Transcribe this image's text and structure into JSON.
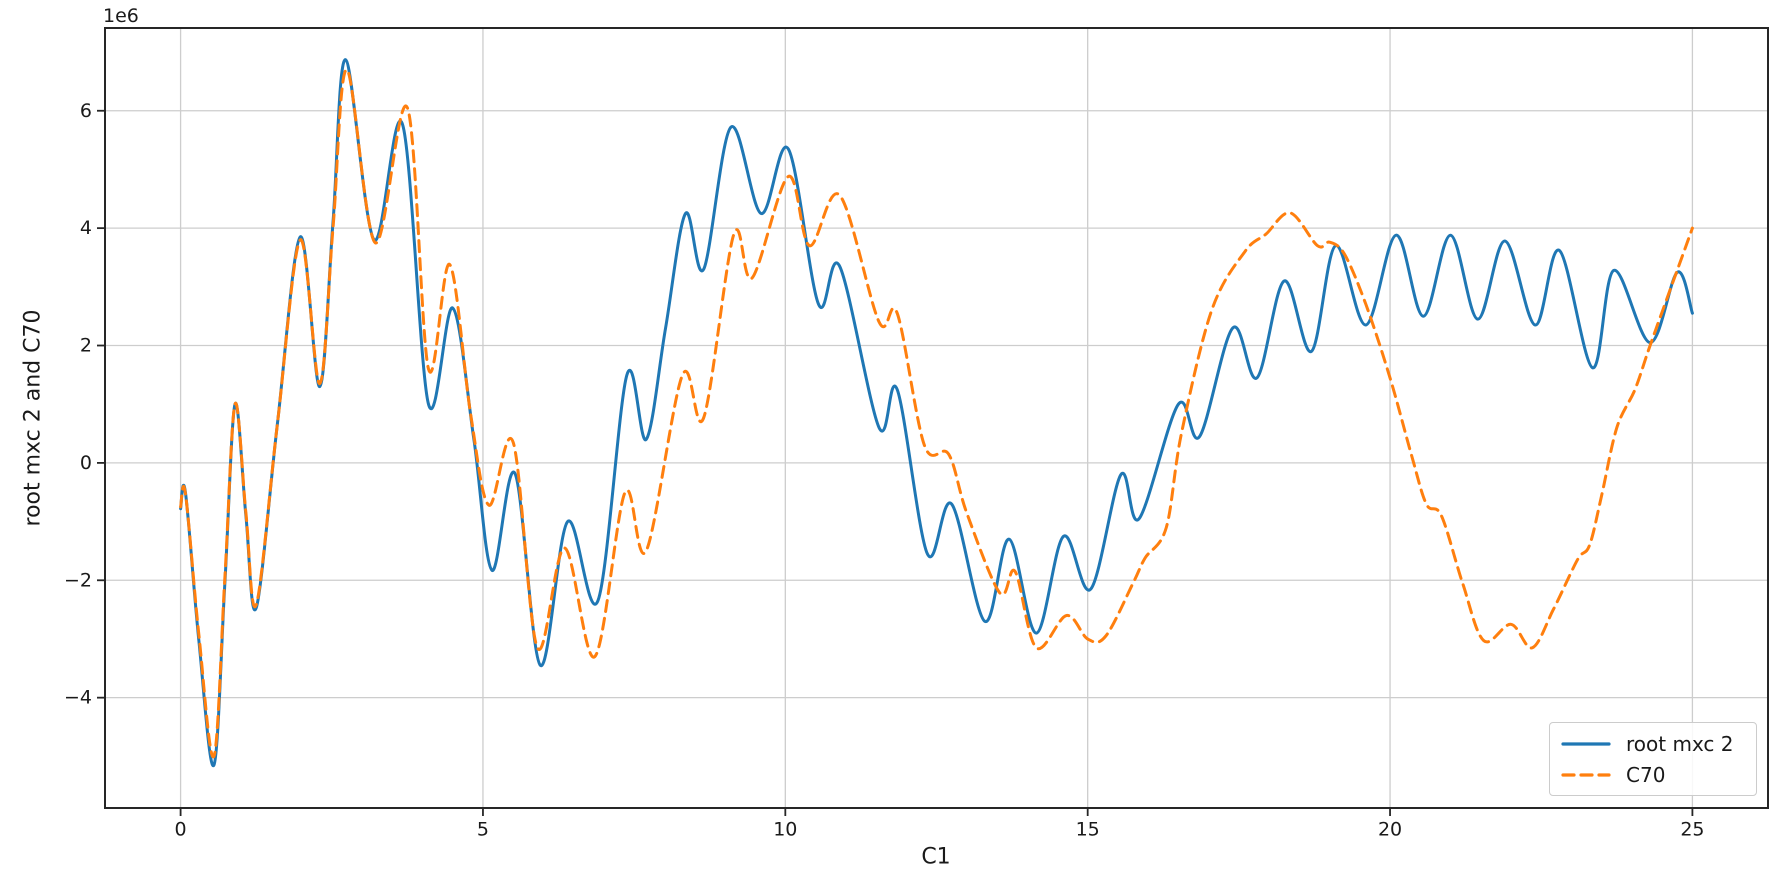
{
  "figure": {
    "xlabel": "C1",
    "ylabel": "root mxc 2 and C70",
    "offset_text": "1e6",
    "background": "#ffffff"
  },
  "legend": {
    "position": "lower right",
    "items": [
      {
        "label": "root mxc 2",
        "color": "#1f77b4",
        "dash": "solid"
      },
      {
        "label": "C70",
        "color": "#ff7f0e",
        "dash": "dashed"
      }
    ]
  },
  "colors": {
    "grid": "#cdcdcd",
    "spine": "#262626",
    "tick": "#262626",
    "text": "#1a1a1a",
    "series_blue": "#1f77b4",
    "series_orange": "#ff7f0e"
  },
  "chart_data": {
    "type": "line",
    "title": "",
    "xlabel": "C1",
    "ylabel": "root mxc 2 and C70",
    "y_unit": "1e6",
    "xlim": [
      -1.25,
      26.25
    ],
    "ylim": [
      -5.88,
      7.41
    ],
    "xticks": [
      0,
      5,
      10,
      15,
      20,
      25
    ],
    "yticks": [
      -4,
      -2,
      0,
      2,
      4,
      6
    ],
    "grid": true,
    "legend_position": "lower right",
    "series": [
      {
        "name": "root mxc 2",
        "color": "#1f77b4",
        "style": "solid",
        "points": [
          [
            0,
            -0.78
          ],
          [
            0.08,
            -0.5
          ],
          [
            0.3,
            -3.0
          ],
          [
            0.55,
            -5.15
          ],
          [
            0.73,
            -2.1
          ],
          [
            0.9,
            1.0
          ],
          [
            1.08,
            -0.9
          ],
          [
            1.25,
            -2.47
          ],
          [
            1.6,
            0.65
          ],
          [
            1.98,
            3.85
          ],
          [
            2.3,
            1.3
          ],
          [
            2.52,
            4.1
          ],
          [
            2.73,
            6.87
          ],
          [
            3.2,
            3.8
          ],
          [
            3.67,
            5.77
          ],
          [
            4.1,
            1.0
          ],
          [
            4.5,
            2.64
          ],
          [
            4.85,
            0.4
          ],
          [
            5.15,
            -1.83
          ],
          [
            5.53,
            -0.18
          ],
          [
            5.95,
            -3.45
          ],
          [
            6.4,
            -1.0
          ],
          [
            6.9,
            -2.35
          ],
          [
            7.38,
            1.5
          ],
          [
            7.7,
            0.4
          ],
          [
            8.02,
            2.3
          ],
          [
            8.35,
            4.25
          ],
          [
            8.65,
            3.3
          ],
          [
            9.1,
            5.72
          ],
          [
            9.6,
            4.25
          ],
          [
            10.05,
            5.35
          ],
          [
            10.55,
            2.7
          ],
          [
            10.9,
            3.35
          ],
          [
            11.55,
            0.6
          ],
          [
            11.85,
            1.25
          ],
          [
            12.35,
            -1.55
          ],
          [
            12.75,
            -0.7
          ],
          [
            13.3,
            -2.7
          ],
          [
            13.7,
            -1.3
          ],
          [
            14.15,
            -2.9
          ],
          [
            14.6,
            -1.25
          ],
          [
            15.05,
            -2.15
          ],
          [
            15.55,
            -0.2
          ],
          [
            15.85,
            -0.95
          ],
          [
            16.5,
            1.0
          ],
          [
            16.85,
            0.45
          ],
          [
            17.4,
            2.3
          ],
          [
            17.8,
            1.45
          ],
          [
            18.25,
            3.1
          ],
          [
            18.7,
            1.9
          ],
          [
            19.1,
            3.7
          ],
          [
            19.6,
            2.35
          ],
          [
            20.1,
            3.88
          ],
          [
            20.55,
            2.5
          ],
          [
            21.0,
            3.88
          ],
          [
            21.45,
            2.45
          ],
          [
            21.9,
            3.78
          ],
          [
            22.4,
            2.35
          ],
          [
            22.8,
            3.62
          ],
          [
            23.35,
            1.62
          ],
          [
            23.7,
            3.28
          ],
          [
            24.3,
            2.05
          ],
          [
            24.75,
            3.25
          ],
          [
            25,
            2.55
          ]
        ]
      },
      {
        "name": "C70",
        "color": "#ff7f0e",
        "style": "dashed",
        "points": [
          [
            0,
            -0.75
          ],
          [
            0.08,
            -0.52
          ],
          [
            0.3,
            -2.9
          ],
          [
            0.55,
            -5.0
          ],
          [
            0.73,
            -2.0
          ],
          [
            0.9,
            1.0
          ],
          [
            1.08,
            -0.85
          ],
          [
            1.25,
            -2.42
          ],
          [
            1.6,
            0.65
          ],
          [
            1.98,
            3.8
          ],
          [
            2.3,
            1.35
          ],
          [
            2.52,
            4.0
          ],
          [
            2.75,
            6.7
          ],
          [
            3.22,
            3.75
          ],
          [
            3.75,
            6.05
          ],
          [
            4.1,
            1.6
          ],
          [
            4.45,
            3.38
          ],
          [
            4.8,
            0.8
          ],
          [
            5.1,
            -0.72
          ],
          [
            5.5,
            0.35
          ],
          [
            5.9,
            -3.15
          ],
          [
            6.35,
            -1.45
          ],
          [
            6.85,
            -3.3
          ],
          [
            7.35,
            -0.5
          ],
          [
            7.7,
            -1.5
          ],
          [
            8.3,
            1.5
          ],
          [
            8.65,
            0.77
          ],
          [
            9.15,
            3.9
          ],
          [
            9.45,
            3.15
          ],
          [
            10.05,
            4.88
          ],
          [
            10.4,
            3.7
          ],
          [
            10.9,
            4.56
          ],
          [
            11.55,
            2.4
          ],
          [
            11.85,
            2.55
          ],
          [
            12.3,
            0.3
          ],
          [
            12.7,
            0.15
          ],
          [
            13.0,
            -0.85
          ],
          [
            13.55,
            -2.22
          ],
          [
            13.8,
            -1.85
          ],
          [
            14.15,
            -3.15
          ],
          [
            14.65,
            -2.6
          ],
          [
            15.0,
            -3.0
          ],
          [
            15.3,
            -2.95
          ],
          [
            15.75,
            -2.05
          ],
          [
            15.95,
            -1.62
          ],
          [
            16.3,
            -1.1
          ],
          [
            16.55,
            0.5
          ],
          [
            17.05,
            2.6
          ],
          [
            17.6,
            3.6
          ],
          [
            17.95,
            3.9
          ],
          [
            18.35,
            4.26
          ],
          [
            18.8,
            3.7
          ],
          [
            19.0,
            3.76
          ],
          [
            19.25,
            3.55
          ],
          [
            19.6,
            2.7
          ],
          [
            20.0,
            1.45
          ],
          [
            20.35,
            0.15
          ],
          [
            20.6,
            -0.7
          ],
          [
            20.85,
            -0.9
          ],
          [
            21.2,
            -2.05
          ],
          [
            21.55,
            -3.03
          ],
          [
            22.0,
            -2.75
          ],
          [
            22.35,
            -3.15
          ],
          [
            22.7,
            -2.5
          ],
          [
            23.1,
            -1.65
          ],
          [
            23.3,
            -1.4
          ],
          [
            23.5,
            -0.55
          ],
          [
            23.75,
            0.6
          ],
          [
            24.05,
            1.25
          ],
          [
            24.3,
            2.0
          ],
          [
            24.65,
            3.0
          ],
          [
            25,
            4.0
          ]
        ]
      }
    ]
  }
}
